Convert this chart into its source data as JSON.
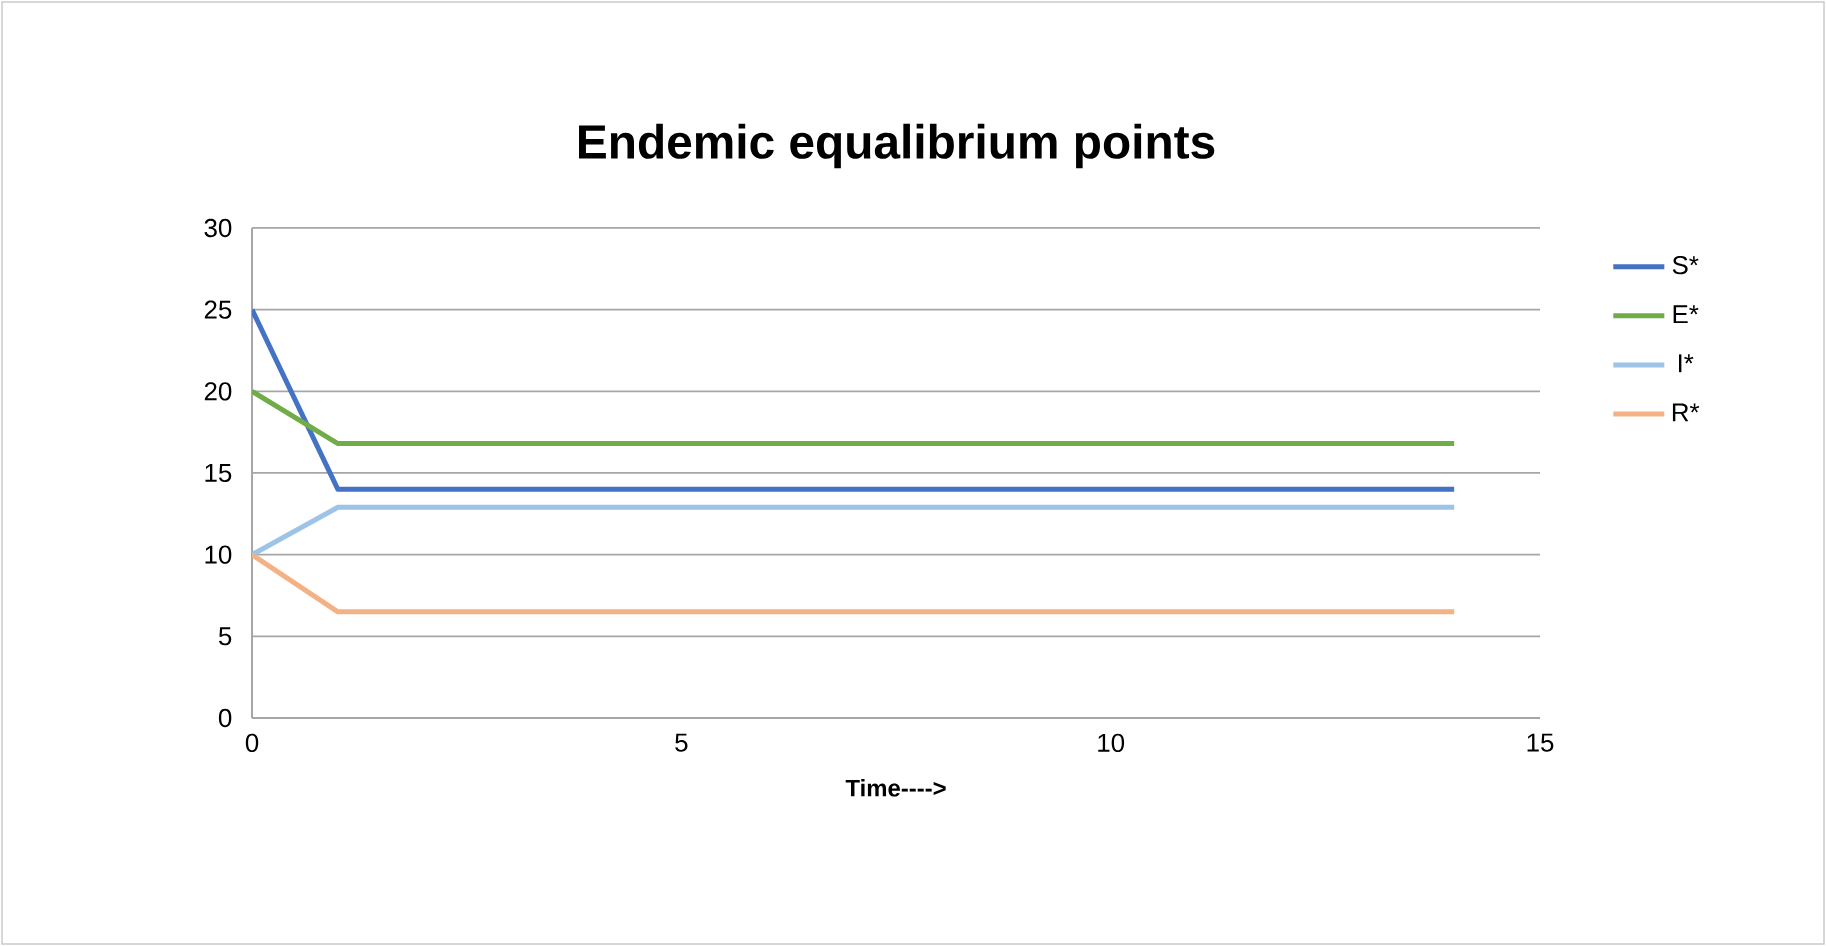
{
  "chart_data": {
    "type": "line",
    "title": "Endemic equalibrium points",
    "xlabel": "Time---->",
    "x": [
      0,
      1,
      14
    ],
    "series": [
      {
        "name": "S*",
        "color": "#4472c4",
        "values": [
          25,
          14,
          14
        ]
      },
      {
        "name": "E*",
        "color": "#70ad47",
        "values": [
          20,
          16.8,
          16.8
        ]
      },
      {
        "name": "I*",
        "color": "#9dc3e6",
        "values": [
          10,
          12.9,
          12.9
        ]
      },
      {
        "name": "R*",
        "color": "#f4b183",
        "values": [
          10,
          6.5,
          6.5
        ]
      }
    ],
    "xlim": [
      0,
      15
    ],
    "xticks": [
      0,
      5,
      10,
      15
    ],
    "ylim": [
      0,
      30
    ],
    "yticks": [
      0,
      5,
      10,
      15,
      20,
      25,
      30
    ],
    "grid": "y",
    "legend": "right",
    "marker": "none",
    "line_style": "solid"
  }
}
